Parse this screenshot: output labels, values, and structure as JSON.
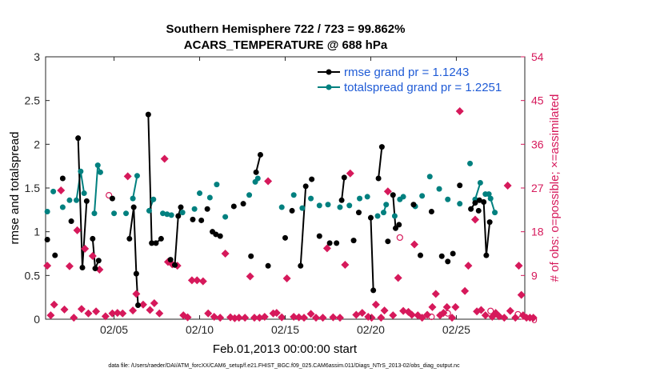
{
  "chart_data": {
    "type": "line",
    "title": [
      "Southern Hemisphere 722 / 723 = 99.862%",
      "ACARS_TEMPERATURE @ 688 hPa"
    ],
    "xlabel": "Feb.01,2013 00:00:00 start",
    "ylabel_left": "rmse and totalspread",
    "ylabel_right": "# of obs: o=possible; ×=assimilated",
    "xlim": [
      1,
      29
    ],
    "ylim_left": [
      0,
      3
    ],
    "ylim_right": [
      0,
      54
    ],
    "x_ticks": [
      5,
      10,
      15,
      20,
      25
    ],
    "x_tick_labels": [
      "02/05",
      "02/10",
      "02/15",
      "02/20",
      "02/25"
    ],
    "y_ticks_left": [
      0,
      0.5,
      1,
      1.5,
      2,
      2.5,
      3
    ],
    "y_tick_labels_left": [
      "0",
      "0.5",
      "1",
      "1.5",
      "2",
      "2.5",
      "3"
    ],
    "y_ticks_right": [
      0,
      9,
      18,
      27,
      36,
      45,
      54
    ],
    "y_tick_labels_right": [
      "0",
      "9",
      "18",
      "27",
      "36",
      "45",
      "54"
    ],
    "legend": {
      "position": "top-right",
      "entries": [
        "rmse grand pr = 1.1243",
        "totalspread grand pr = 1.2251"
      ]
    },
    "colors": {
      "rmse": "#000000",
      "spread": "#00807f",
      "obs": "#d6195b"
    },
    "series": [
      {
        "name": "rmse",
        "points": [
          [
            1.1,
            0.91
          ],
          [
            1.55,
            0.73
          ],
          [
            2.0,
            1.61
          ],
          [
            2.5,
            1.12
          ],
          [
            2.9,
            2.07
          ],
          [
            3.15,
            0.59
          ],
          [
            3.4,
            1.35
          ],
          [
            3.75,
            0.92
          ],
          [
            3.9,
            0.58
          ],
          [
            4.1,
            0.67
          ],
          [
            4.9,
            1.38
          ],
          [
            5.9,
            0.92
          ],
          [
            6.15,
            1.28
          ],
          [
            6.3,
            0.52
          ],
          [
            6.4,
            0.16
          ],
          [
            7.0,
            2.34
          ],
          [
            7.2,
            0.87
          ],
          [
            7.45,
            0.87
          ],
          [
            7.75,
            0.92
          ],
          [
            8.3,
            0.68
          ],
          [
            8.55,
            0.62
          ],
          [
            8.75,
            1.18
          ],
          [
            8.9,
            1.28
          ],
          [
            9.6,
            1.14
          ],
          [
            10.1,
            1.13
          ],
          [
            10.45,
            1.26
          ],
          [
            10.75,
            1.0
          ],
          [
            10.95,
            0.97
          ],
          [
            11.2,
            0.95
          ],
          [
            12.0,
            1.29
          ],
          [
            12.55,
            1.32
          ],
          [
            13.0,
            0.72
          ],
          [
            13.3,
            1.68
          ],
          [
            13.55,
            1.88
          ],
          [
            14.0,
            0.61
          ],
          [
            15.0,
            0.93
          ],
          [
            15.4,
            1.24
          ],
          [
            15.9,
            0.61
          ],
          [
            16.2,
            1.52
          ],
          [
            16.55,
            1.6
          ],
          [
            17.0,
            0.95
          ],
          [
            17.6,
            0.87
          ],
          [
            18.0,
            0.87
          ],
          [
            18.3,
            1.36
          ],
          [
            18.45,
            1.62
          ],
          [
            19.0,
            0.9
          ],
          [
            19.3,
            1.22
          ],
          [
            20.0,
            1.16
          ],
          [
            20.15,
            0.33
          ],
          [
            20.45,
            1.61
          ],
          [
            20.65,
            1.97
          ],
          [
            21.0,
            0.89
          ],
          [
            21.3,
            1.42
          ],
          [
            21.45,
            1.04
          ],
          [
            21.65,
            1.08
          ],
          [
            22.5,
            1.31
          ],
          [
            22.9,
            0.73
          ],
          [
            23.55,
            1.23
          ],
          [
            24.15,
            0.72
          ],
          [
            24.5,
            0.66
          ],
          [
            24.8,
            0.75
          ],
          [
            25.2,
            1.53
          ],
          [
            25.85,
            1.26
          ],
          [
            26.1,
            1.33
          ],
          [
            26.35,
            1.36
          ],
          [
            26.6,
            1.34
          ],
          [
            26.75,
            0.73
          ],
          [
            26.95,
            1.11
          ],
          [
            26.3,
            1.24
          ]
        ]
      },
      {
        "name": "totalspread",
        "points": [
          [
            1.1,
            1.23
          ],
          [
            1.45,
            1.46
          ],
          [
            2.0,
            1.28
          ],
          [
            2.4,
            1.36
          ],
          [
            2.8,
            1.36
          ],
          [
            3.05,
            1.69
          ],
          [
            3.25,
            1.44
          ],
          [
            3.85,
            1.21
          ],
          [
            4.05,
            1.76
          ],
          [
            4.2,
            1.68
          ],
          [
            5.0,
            1.21
          ],
          [
            5.7,
            1.21
          ],
          [
            6.1,
            1.38
          ],
          [
            6.35,
            1.64
          ],
          [
            7.05,
            1.24
          ],
          [
            7.3,
            1.37
          ],
          [
            7.85,
            1.21
          ],
          [
            8.1,
            1.2
          ],
          [
            8.35,
            1.19
          ],
          [
            9.0,
            1.22
          ],
          [
            9.7,
            1.26
          ],
          [
            10.0,
            1.44
          ],
          [
            10.6,
            1.39
          ],
          [
            11.0,
            1.54
          ],
          [
            11.5,
            1.17
          ],
          [
            12.9,
            1.42
          ],
          [
            13.25,
            1.57
          ],
          [
            13.4,
            1.61
          ],
          [
            14.8,
            1.28
          ],
          [
            15.5,
            1.42
          ],
          [
            16.0,
            1.27
          ],
          [
            16.5,
            1.38
          ],
          [
            17.0,
            1.3
          ],
          [
            17.5,
            1.31
          ],
          [
            18.2,
            1.28
          ],
          [
            18.75,
            1.3
          ],
          [
            19.35,
            1.38
          ],
          [
            19.8,
            1.4
          ],
          [
            20.4,
            1.18
          ],
          [
            20.75,
            1.22
          ],
          [
            20.9,
            1.31
          ],
          [
            21.4,
            1.18
          ],
          [
            21.7,
            1.37
          ],
          [
            21.9,
            1.4
          ],
          [
            22.6,
            1.29
          ],
          [
            23.0,
            1.41
          ],
          [
            23.45,
            1.63
          ],
          [
            24.0,
            1.49
          ],
          [
            24.5,
            1.37
          ],
          [
            25.2,
            1.32
          ],
          [
            25.8,
            1.78
          ],
          [
            26.1,
            1.37
          ],
          [
            26.4,
            1.56
          ],
          [
            26.7,
            1.43
          ],
          [
            26.9,
            1.43
          ],
          [
            27.0,
            1.38
          ],
          [
            27.25,
            1.22
          ]
        ]
      },
      {
        "name": "obs_possible",
        "points": [
          [
            4.7,
            25.5
          ],
          [
            21.7,
            16.8
          ],
          [
            23.55,
            0.5
          ],
          [
            24.5,
            1.2
          ],
          [
            27.0,
            1.7
          ],
          [
            28.6,
            1.0
          ]
        ]
      },
      {
        "name": "obs_assimilated",
        "points": [
          [
            1.1,
            11.0
          ],
          [
            1.3,
            0.8
          ],
          [
            1.5,
            3.0
          ],
          [
            1.9,
            26.5
          ],
          [
            2.1,
            2.0
          ],
          [
            2.4,
            10.9
          ],
          [
            2.65,
            0.3
          ],
          [
            2.85,
            18.3
          ],
          [
            3.1,
            2.1
          ],
          [
            3.3,
            14.5
          ],
          [
            3.5,
            1.2
          ],
          [
            3.75,
            13.0
          ],
          [
            3.95,
            1.6
          ],
          [
            4.15,
            10.2
          ],
          [
            4.5,
            0.6
          ],
          [
            4.9,
            1.2
          ],
          [
            5.2,
            1.3
          ],
          [
            5.5,
            1.2
          ],
          [
            5.8,
            29.4
          ],
          [
            6.1,
            1.8
          ],
          [
            6.3,
            5.2
          ],
          [
            6.7,
            3.0
          ],
          [
            7.1,
            1.9
          ],
          [
            7.35,
            3.3
          ],
          [
            7.65,
            1.2
          ],
          [
            7.95,
            33.0
          ],
          [
            8.15,
            11.8
          ],
          [
            8.4,
            11.3
          ],
          [
            8.7,
            11.0
          ],
          [
            9.05,
            0.8
          ],
          [
            9.3,
            0.4
          ],
          [
            9.55,
            8.0
          ],
          [
            9.85,
            8.0
          ],
          [
            10.2,
            7.8
          ],
          [
            10.5,
            1.2
          ],
          [
            10.85,
            0.5
          ],
          [
            11.2,
            0.3
          ],
          [
            11.5,
            13.5
          ],
          [
            11.8,
            0.4
          ],
          [
            12.05,
            0.2
          ],
          [
            12.3,
            0.3
          ],
          [
            12.65,
            0.3
          ],
          [
            12.95,
            8.8
          ],
          [
            13.2,
            0.3
          ],
          [
            13.5,
            0.3
          ],
          [
            13.8,
            0.5
          ],
          [
            14.0,
            28.4
          ],
          [
            14.3,
            1.2
          ],
          [
            14.5,
            1.3
          ],
          [
            14.8,
            0.4
          ],
          [
            15.1,
            8.4
          ],
          [
            15.5,
            0.5
          ],
          [
            15.8,
            0.4
          ],
          [
            16.1,
            0.3
          ],
          [
            16.5,
            1.1
          ],
          [
            16.8,
            0.3
          ],
          [
            17.2,
            0.3
          ],
          [
            17.45,
            14.6
          ],
          [
            17.8,
            0.4
          ],
          [
            18.2,
            0.3
          ],
          [
            18.5,
            11.2
          ],
          [
            18.8,
            30.0
          ],
          [
            19.15,
            0.9
          ],
          [
            19.5,
            1.3
          ],
          [
            19.85,
            0.5
          ],
          [
            20.05,
            0.3
          ],
          [
            20.3,
            3.0
          ],
          [
            20.6,
            0.3
          ],
          [
            20.8,
            1.8
          ],
          [
            21.0,
            26.3
          ],
          [
            21.3,
            0.8
          ],
          [
            21.6,
            8.5
          ],
          [
            21.9,
            1.7
          ],
          [
            22.2,
            1.5
          ],
          [
            22.4,
            0.9
          ],
          [
            22.55,
            15.4
          ],
          [
            22.75,
            0.8
          ],
          [
            23.0,
            0.3
          ],
          [
            23.3,
            0.9
          ],
          [
            23.6,
            2.5
          ],
          [
            23.8,
            5.2
          ],
          [
            24.05,
            0.8
          ],
          [
            24.25,
            1.3
          ],
          [
            24.45,
            2.5
          ],
          [
            24.75,
            0.3
          ],
          [
            24.95,
            2.5
          ],
          [
            25.2,
            42.8
          ],
          [
            25.5,
            5.8
          ],
          [
            25.7,
            11.0
          ],
          [
            26.1,
            20.5
          ],
          [
            26.2,
            1.6
          ],
          [
            26.45,
            1.9
          ],
          [
            26.7,
            0.8
          ],
          [
            27.1,
            0.5
          ],
          [
            27.3,
            1.3
          ],
          [
            27.5,
            0.6
          ],
          [
            27.8,
            0.3
          ],
          [
            28.0,
            27.5
          ],
          [
            28.15,
            1.7
          ],
          [
            28.45,
            0.3
          ],
          [
            28.65,
            11.0
          ],
          [
            28.8,
            5.0
          ],
          [
            28.9,
            0.8
          ],
          [
            29.1,
            0.3
          ],
          [
            29.3,
            0.3
          ],
          [
            29.5,
            0.3
          ]
        ]
      }
    ]
  },
  "footer_text": "data file: /Users/raeder/DAI/ATM_forcXX/CAM6_setup/f.e21.FHIST_BGC.f09_025.CAM6assim.011/Diags_NTrS_2013-02/obs_diag_output.nc"
}
